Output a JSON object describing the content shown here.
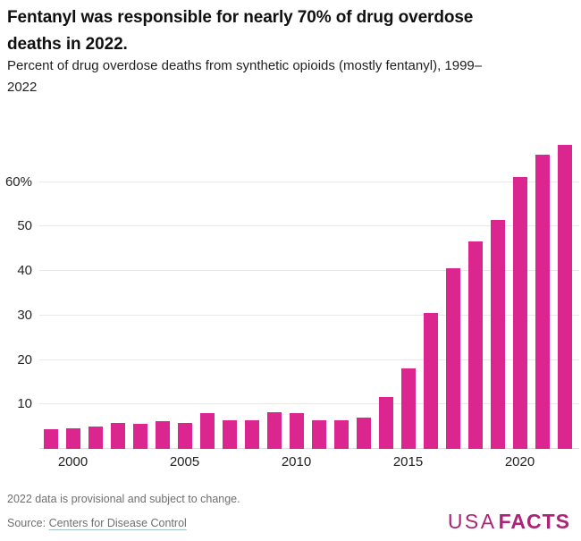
{
  "header": {
    "title": "Fentanyl was responsible for nearly 70% of drug overdose deaths in 2022.",
    "subtitle": "Percent of drug overdose deaths from synthetic opioids (mostly fentanyl), 1999–2022"
  },
  "chart_data": {
    "type": "bar",
    "title": "Fentanyl was responsible for nearly 70% of drug overdose deaths in 2022.",
    "subtitle": "Percent of drug overdose deaths from synthetic opioids (mostly fentanyl), 1999–2022",
    "categories": [
      1999,
      2000,
      2001,
      2002,
      2003,
      2004,
      2005,
      2006,
      2007,
      2008,
      2009,
      2010,
      2011,
      2012,
      2013,
      2014,
      2015,
      2016,
      2017,
      2018,
      2019,
      2020,
      2021,
      2022
    ],
    "values": [
      4.4,
      4.7,
      5.1,
      5.8,
      5.6,
      6.2,
      5.9,
      8.0,
      6.4,
      6.5,
      8.2,
      8.0,
      6.4,
      6.4,
      7.1,
      11.7,
      18.2,
      30.6,
      40.6,
      46.6,
      51.5,
      61.2,
      66.1,
      68.3
    ],
    "xlabel": "",
    "ylabel": "",
    "ylim": [
      0,
      70
    ],
    "yticks": [
      {
        "value": 10,
        "label": "10"
      },
      {
        "value": 20,
        "label": "20"
      },
      {
        "value": 30,
        "label": "30"
      },
      {
        "value": 40,
        "label": "40"
      },
      {
        "value": 50,
        "label": "50"
      },
      {
        "value": 60,
        "label": "60%"
      }
    ],
    "xticks": [
      2000,
      2005,
      2010,
      2015,
      2020
    ],
    "grid": true,
    "legend": false,
    "bar_color": "#db2690"
  },
  "footer": {
    "note": "2022 data is provisional and subject to change.",
    "source_prefix": "Source: ",
    "source_link": "Centers for Disease Control",
    "logo_light": "USA",
    "logo_bold": "FACTS",
    "brand_color": "#ab2478"
  }
}
